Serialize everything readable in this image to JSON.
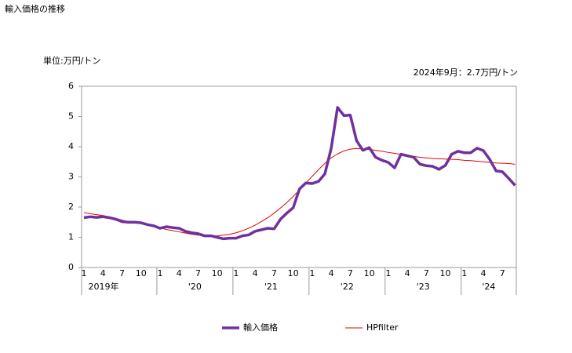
{
  "chart_data": {
    "type": "line",
    "title": "輸入価格の推移",
    "y_unit_label": "単位:万円/トン",
    "annotation": "2024年9月：2.7万円/トン",
    "categories": [
      "1",
      null,
      null,
      "4",
      null,
      null,
      "7",
      null,
      null,
      "10",
      null,
      null,
      "1",
      null,
      null,
      "4",
      null,
      null,
      "7",
      null,
      null,
      "10",
      null,
      null,
      "1",
      null,
      null,
      "4",
      null,
      null,
      "7",
      null,
      null,
      "10",
      null,
      null,
      "1",
      null,
      null,
      "4",
      null,
      null,
      "7",
      null,
      null,
      "10",
      null,
      null,
      "1",
      null,
      null,
      "4",
      null,
      null,
      "7",
      null,
      null,
      "10",
      null,
      null,
      "1",
      null,
      null,
      "4",
      null,
      null,
      "7",
      null,
      null
    ],
    "year_labels": [
      "2019年",
      "'20",
      "'21",
      "'22",
      "'23",
      "'24"
    ],
    "series": [
      {
        "name": "輸入価格",
        "color": "#7030a0",
        "width": 3.5,
        "values": [
          1.65,
          1.68,
          1.66,
          1.68,
          1.65,
          1.6,
          1.52,
          1.5,
          1.5,
          1.48,
          1.42,
          1.38,
          1.3,
          1.35,
          1.32,
          1.3,
          1.2,
          1.15,
          1.12,
          1.05,
          1.05,
          1.0,
          0.95,
          0.97,
          0.97,
          1.05,
          1.08,
          1.2,
          1.25,
          1.3,
          1.28,
          1.6,
          1.8,
          1.98,
          2.6,
          2.8,
          2.78,
          2.85,
          3.1,
          3.95,
          5.3,
          5.03,
          5.05,
          4.2,
          3.88,
          3.97,
          3.65,
          3.55,
          3.48,
          3.3,
          3.75,
          3.7,
          3.65,
          3.42,
          3.37,
          3.35,
          3.25,
          3.38,
          3.75,
          3.85,
          3.8,
          3.8,
          3.95,
          3.87,
          3.58,
          3.2,
          3.17,
          2.95,
          2.72
        ]
      },
      {
        "name": "HPfilter",
        "color": "#e60000",
        "width": 1,
        "values": [
          1.82,
          1.78,
          1.75,
          1.72,
          1.68,
          1.63,
          1.57,
          1.52,
          1.48,
          1.45,
          1.41,
          1.36,
          1.31,
          1.26,
          1.22,
          1.18,
          1.14,
          1.1,
          1.07,
          1.05,
          1.04,
          1.05,
          1.07,
          1.1,
          1.15,
          1.22,
          1.3,
          1.4,
          1.52,
          1.65,
          1.8,
          1.97,
          2.15,
          2.35,
          2.57,
          2.8,
          3.02,
          3.24,
          3.45,
          3.63,
          3.76,
          3.86,
          3.92,
          3.94,
          3.93,
          3.91,
          3.88,
          3.85,
          3.81,
          3.78,
          3.74,
          3.71,
          3.68,
          3.65,
          3.63,
          3.61,
          3.6,
          3.59,
          3.58,
          3.57,
          3.55,
          3.54,
          3.52,
          3.5,
          3.48,
          3.46,
          3.45,
          3.44,
          3.42
        ]
      }
    ],
    "ylim": [
      0,
      6
    ],
    "yticks": [
      0,
      1,
      2,
      3,
      4,
      5,
      6
    ],
    "grid": false
  }
}
